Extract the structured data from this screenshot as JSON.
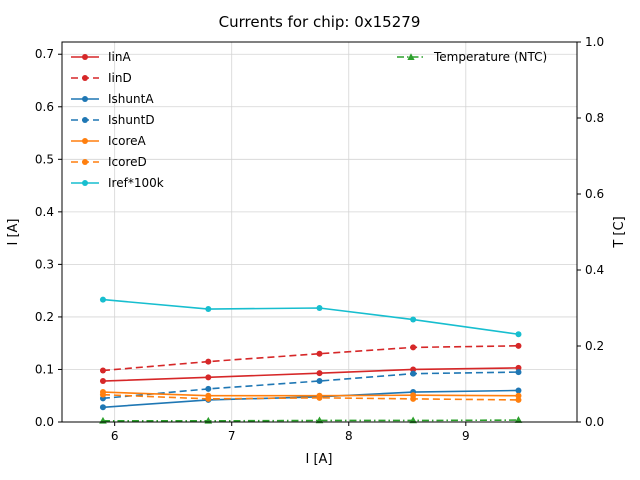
{
  "title": "Currents for chip: 0x15279",
  "chart_data": {
    "type": "line",
    "title": "Currents for chip: 0x15279",
    "xlabel": "I [A]",
    "ylabel_left": "I [A]",
    "ylabel_right": "T [C]",
    "xlim": [
      5.55,
      9.95
    ],
    "ylim_left": [
      0,
      0.7233
    ],
    "ylim_right": [
      0,
      1.0
    ],
    "x_ticks": [
      6,
      7,
      8,
      9
    ],
    "y_ticks_left": [
      0.0,
      0.1,
      0.2,
      0.3,
      0.4,
      0.5,
      0.6,
      0.7
    ],
    "y_ticks_right": [
      0.0,
      0.2,
      0.4,
      0.6,
      0.8,
      1.0
    ],
    "grid": true,
    "grid_color": "#d4d4d4",
    "background": "#ffffff",
    "x": [
      5.9,
      6.8,
      7.75,
      8.55,
      9.45
    ],
    "series": [
      {
        "name": "IinA",
        "color": "#d62728",
        "style": "solid",
        "marker": "circle",
        "axis": "left",
        "values": [
          0.078,
          0.085,
          0.093,
          0.1,
          0.103
        ]
      },
      {
        "name": "IinD",
        "color": "#d62728",
        "style": "dashed",
        "marker": "circle",
        "axis": "left",
        "values": [
          0.098,
          0.115,
          0.13,
          0.142,
          0.145
        ]
      },
      {
        "name": "IshuntA",
        "color": "#1f77b4",
        "style": "solid",
        "marker": "circle",
        "axis": "left",
        "values": [
          0.028,
          0.042,
          0.048,
          0.057,
          0.06
        ]
      },
      {
        "name": "IshuntD",
        "color": "#1f77b4",
        "style": "dashed",
        "marker": "circle",
        "axis": "left",
        "values": [
          0.045,
          0.063,
          0.078,
          0.092,
          0.095
        ]
      },
      {
        "name": "IcoreA",
        "color": "#ff7f0e",
        "style": "solid",
        "marker": "circle",
        "axis": "left",
        "values": [
          0.057,
          0.05,
          0.05,
          0.051,
          0.05
        ]
      },
      {
        "name": "IcoreD",
        "color": "#ff7f0e",
        "style": "dashed",
        "marker": "circle",
        "axis": "left",
        "values": [
          0.052,
          0.044,
          0.046,
          0.044,
          0.042
        ]
      },
      {
        "name": "Iref*100k",
        "color": "#17becf",
        "style": "solid",
        "marker": "circle",
        "axis": "left",
        "values": [
          0.233,
          0.215,
          0.217,
          0.195,
          0.167
        ]
      }
    ],
    "right_series": [
      {
        "name": "Temperature (NTC)",
        "color": "#2ca02c",
        "style": "dashdot",
        "marker": "triangle",
        "axis": "right",
        "values": [
          0.003,
          0.003,
          0.004,
          0.004,
          0.005
        ]
      }
    ],
    "legend_left_position": "upper left",
    "legend_right_position": "upper right"
  }
}
